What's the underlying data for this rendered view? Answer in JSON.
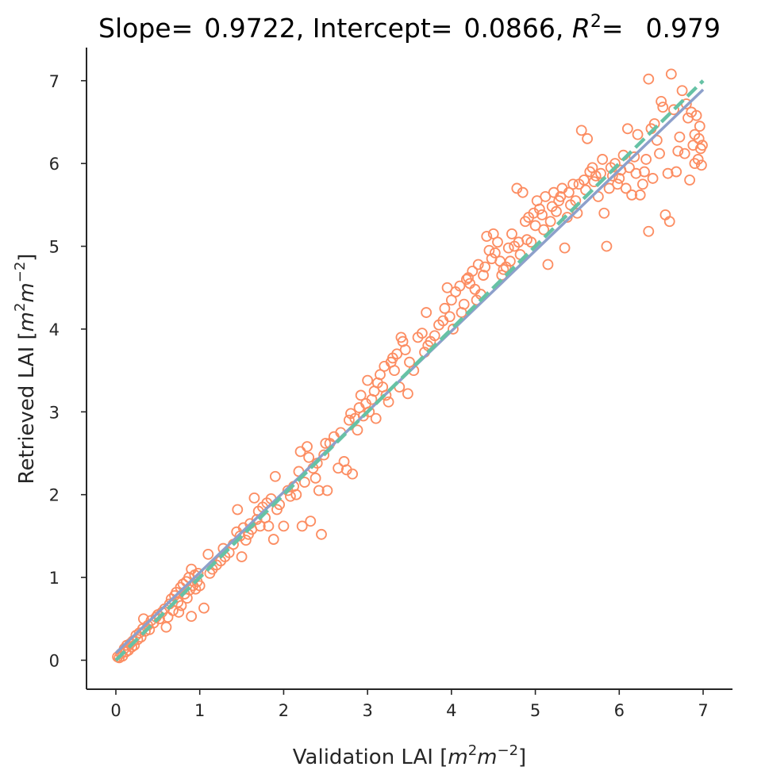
{
  "chart_data": {
    "type": "scatter",
    "title": {
      "slope_label": "Slope=",
      "slope_value": "0.9722",
      "intercept_label": "Intercept=",
      "intercept_value": "0.0866",
      "r2_label": "R",
      "r2_exp": "2",
      "r2_eq": "=",
      "r2_value": "0.979"
    },
    "xlabel": {
      "text": "Validation LAI [",
      "m1": "m",
      "sup1": "2",
      "m2": "m",
      "sup2": "−2",
      "close": "]"
    },
    "ylabel": {
      "text": "Retrieved LAI [",
      "m1": "m",
      "sup1": "2",
      "m2": "m",
      "sup2": "−2",
      "close": "]"
    },
    "xlim": [
      -0.35,
      7.35
    ],
    "ylim": [
      -0.35,
      7.4
    ],
    "xticks": [
      0,
      1,
      2,
      3,
      4,
      5,
      6,
      7
    ],
    "yticks": [
      0,
      1,
      2,
      3,
      4,
      5,
      6,
      7
    ],
    "xtick_labels": [
      "0",
      "1",
      "2",
      "3",
      "4",
      "5",
      "6",
      "7"
    ],
    "ytick_labels": [
      "0",
      "1",
      "2",
      "3",
      "4",
      "5",
      "6",
      "7"
    ],
    "grid": false,
    "legend": "none",
    "colors": {
      "points": "#fc8d62",
      "fit_line": "#8da0cb",
      "identity_line": "#66c2a5",
      "axis": "#262626"
    },
    "fit_line": {
      "slope": 0.9722,
      "intercept": 0.0866,
      "x_range": [
        0,
        7
      ]
    },
    "identity_line": {
      "x_range": [
        0,
        7
      ],
      "style": "dashed"
    },
    "points": [
      [
        0.02,
        0.04
      ],
      [
        0.04,
        0.03
      ],
      [
        0.06,
        0.08
      ],
      [
        0.08,
        0.05
      ],
      [
        0.1,
        0.14
      ],
      [
        0.12,
        0.1
      ],
      [
        0.13,
        0.18
      ],
      [
        0.15,
        0.12
      ],
      [
        0.17,
        0.2
      ],
      [
        0.19,
        0.16
      ],
      [
        0.2,
        0.23
      ],
      [
        0.22,
        0.18
      ],
      [
        0.24,
        0.3
      ],
      [
        0.26,
        0.25
      ],
      [
        0.28,
        0.33
      ],
      [
        0.3,
        0.28
      ],
      [
        0.32,
        0.38
      ],
      [
        0.33,
        0.5
      ],
      [
        0.35,
        0.35
      ],
      [
        0.38,
        0.42
      ],
      [
        0.4,
        0.37
      ],
      [
        0.42,
        0.48
      ],
      [
        0.45,
        0.45
      ],
      [
        0.48,
        0.52
      ],
      [
        0.5,
        0.55
      ],
      [
        0.52,
        0.5
      ],
      [
        0.55,
        0.58
      ],
      [
        0.58,
        0.62
      ],
      [
        0.6,
        0.4
      ],
      [
        0.62,
        0.52
      ],
      [
        0.64,
        0.68
      ],
      [
        0.66,
        0.74
      ],
      [
        0.68,
        0.6
      ],
      [
        0.7,
        0.78
      ],
      [
        0.72,
        0.82
      ],
      [
        0.74,
        0.7
      ],
      [
        0.75,
        0.58
      ],
      [
        0.77,
        0.88
      ],
      [
        0.78,
        0.66
      ],
      [
        0.8,
        0.92
      ],
      [
        0.82,
        0.8
      ],
      [
        0.84,
        0.95
      ],
      [
        0.85,
        0.75
      ],
      [
        0.87,
        1.0
      ],
      [
        0.88,
        0.85
      ],
      [
        0.9,
        1.1
      ],
      [
        0.9,
        0.53
      ],
      [
        0.92,
        0.9
      ],
      [
        0.94,
        1.03
      ],
      [
        0.95,
        0.86
      ],
      [
        0.97,
        0.95
      ],
      [
        0.98,
        1.05
      ],
      [
        1.0,
        0.9
      ],
      [
        1.05,
        0.63
      ],
      [
        1.1,
        1.28
      ],
      [
        1.12,
        1.05
      ],
      [
        1.15,
        1.1
      ],
      [
        1.2,
        1.15
      ],
      [
        1.25,
        1.2
      ],
      [
        1.28,
        1.35
      ],
      [
        1.3,
        1.25
      ],
      [
        1.35,
        1.3
      ],
      [
        1.4,
        1.4
      ],
      [
        1.44,
        1.55
      ],
      [
        1.45,
        1.82
      ],
      [
        1.48,
        1.5
      ],
      [
        1.5,
        1.25
      ],
      [
        1.52,
        1.6
      ],
      [
        1.55,
        1.45
      ],
      [
        1.58,
        1.52
      ],
      [
        1.6,
        1.65
      ],
      [
        1.62,
        1.58
      ],
      [
        1.65,
        1.96
      ],
      [
        1.68,
        1.7
      ],
      [
        1.7,
        1.8
      ],
      [
        1.72,
        1.62
      ],
      [
        1.75,
        1.85
      ],
      [
        1.78,
        1.72
      ],
      [
        1.8,
        1.9
      ],
      [
        1.82,
        1.62
      ],
      [
        1.85,
        1.95
      ],
      [
        1.88,
        1.46
      ],
      [
        1.9,
        2.22
      ],
      [
        1.92,
        1.82
      ],
      [
        1.95,
        1.88
      ],
      [
        2.0,
        1.62
      ],
      [
        2.05,
        2.05
      ],
      [
        2.08,
        1.98
      ],
      [
        2.12,
        2.1
      ],
      [
        2.15,
        2.0
      ],
      [
        2.18,
        2.28
      ],
      [
        2.2,
        2.52
      ],
      [
        2.22,
        1.62
      ],
      [
        2.25,
        2.15
      ],
      [
        2.28,
        2.58
      ],
      [
        2.3,
        2.45
      ],
      [
        2.32,
        1.68
      ],
      [
        2.35,
        2.32
      ],
      [
        2.38,
        2.2
      ],
      [
        2.4,
        2.38
      ],
      [
        2.42,
        2.05
      ],
      [
        2.45,
        1.52
      ],
      [
        2.48,
        2.48
      ],
      [
        2.5,
        2.62
      ],
      [
        2.52,
        2.05
      ],
      [
        2.55,
        2.62
      ],
      [
        2.6,
        2.7
      ],
      [
        2.65,
        2.32
      ],
      [
        2.68,
        2.75
      ],
      [
        2.72,
        2.4
      ],
      [
        2.75,
        2.3
      ],
      [
        2.78,
        2.9
      ],
      [
        2.8,
        2.98
      ],
      [
        2.82,
        2.25
      ],
      [
        2.85,
        2.92
      ],
      [
        2.88,
        2.78
      ],
      [
        2.9,
        3.05
      ],
      [
        2.92,
        3.2
      ],
      [
        2.95,
        2.95
      ],
      [
        2.98,
        3.1
      ],
      [
        3.0,
        3.38
      ],
      [
        3.02,
        3.0
      ],
      [
        3.05,
        3.15
      ],
      [
        3.08,
        3.25
      ],
      [
        3.1,
        2.92
      ],
      [
        3.12,
        3.35
      ],
      [
        3.15,
        3.45
      ],
      [
        3.18,
        3.3
      ],
      [
        3.2,
        3.55
      ],
      [
        3.22,
        3.2
      ],
      [
        3.25,
        3.12
      ],
      [
        3.28,
        3.6
      ],
      [
        3.3,
        3.65
      ],
      [
        3.32,
        3.5
      ],
      [
        3.35,
        3.7
      ],
      [
        3.38,
        3.3
      ],
      [
        3.4,
        3.9
      ],
      [
        3.42,
        3.85
      ],
      [
        3.45,
        3.75
      ],
      [
        3.48,
        3.22
      ],
      [
        3.5,
        3.6
      ],
      [
        3.55,
        3.5
      ],
      [
        3.6,
        3.9
      ],
      [
        3.65,
        3.95
      ],
      [
        3.68,
        3.72
      ],
      [
        3.7,
        4.2
      ],
      [
        3.72,
        3.8
      ],
      [
        3.75,
        3.85
      ],
      [
        3.8,
        3.92
      ],
      [
        3.85,
        4.05
      ],
      [
        3.9,
        4.1
      ],
      [
        3.92,
        4.25
      ],
      [
        3.95,
        4.5
      ],
      [
        3.98,
        4.15
      ],
      [
        4.0,
        4.35
      ],
      [
        4.02,
        4.0
      ],
      [
        4.05,
        4.45
      ],
      [
        4.1,
        4.52
      ],
      [
        4.12,
        4.2
      ],
      [
        4.15,
        4.3
      ],
      [
        4.18,
        4.6
      ],
      [
        4.2,
        4.62
      ],
      [
        4.22,
        4.55
      ],
      [
        4.25,
        4.7
      ],
      [
        4.28,
        4.48
      ],
      [
        4.3,
        4.35
      ],
      [
        4.32,
        4.78
      ],
      [
        4.35,
        4.42
      ],
      [
        4.38,
        4.65
      ],
      [
        4.4,
        4.75
      ],
      [
        4.42,
        5.12
      ],
      [
        4.45,
        4.95
      ],
      [
        4.48,
        4.85
      ],
      [
        4.5,
        5.15
      ],
      [
        4.52,
        4.92
      ],
      [
        4.55,
        5.05
      ],
      [
        4.58,
        4.82
      ],
      [
        4.6,
        4.65
      ],
      [
        4.62,
        4.72
      ],
      [
        4.65,
        4.75
      ],
      [
        4.68,
        4.98
      ],
      [
        4.7,
        4.82
      ],
      [
        4.72,
        5.15
      ],
      [
        4.75,
        5.0
      ],
      [
        4.78,
        5.7
      ],
      [
        4.8,
        5.05
      ],
      [
        4.82,
        4.9
      ],
      [
        4.85,
        5.65
      ],
      [
        4.88,
        5.3
      ],
      [
        4.9,
        5.08
      ],
      [
        4.92,
        5.35
      ],
      [
        4.95,
        5.05
      ],
      [
        4.98,
        5.4
      ],
      [
        5.0,
        5.25
      ],
      [
        5.02,
        5.55
      ],
      [
        5.05,
        5.45
      ],
      [
        5.08,
        5.38
      ],
      [
        5.1,
        5.2
      ],
      [
        5.12,
        5.6
      ],
      [
        5.15,
        4.78
      ],
      [
        5.18,
        5.3
      ],
      [
        5.2,
        5.48
      ],
      [
        5.22,
        5.65
      ],
      [
        5.25,
        5.42
      ],
      [
        5.28,
        5.55
      ],
      [
        5.3,
        5.6
      ],
      [
        5.32,
        5.7
      ],
      [
        5.35,
        4.98
      ],
      [
        5.38,
        5.35
      ],
      [
        5.4,
        5.65
      ],
      [
        5.42,
        5.5
      ],
      [
        5.45,
        5.75
      ],
      [
        5.48,
        5.55
      ],
      [
        5.5,
        5.4
      ],
      [
        5.52,
        5.75
      ],
      [
        5.55,
        6.4
      ],
      [
        5.58,
        5.8
      ],
      [
        5.6,
        5.68
      ],
      [
        5.62,
        6.3
      ],
      [
        5.65,
        5.9
      ],
      [
        5.68,
        5.95
      ],
      [
        5.7,
        5.78
      ],
      [
        5.72,
        5.85
      ],
      [
        5.75,
        5.6
      ],
      [
        5.78,
        5.88
      ],
      [
        5.8,
        6.05
      ],
      [
        5.82,
        5.4
      ],
      [
        5.85,
        5.0
      ],
      [
        5.88,
        5.7
      ],
      [
        5.9,
        5.95
      ],
      [
        5.92,
        5.85
      ],
      [
        5.95,
        6.0
      ],
      [
        5.98,
        5.75
      ],
      [
        6.0,
        5.82
      ],
      [
        6.02,
        5.92
      ],
      [
        6.05,
        6.1
      ],
      [
        6.08,
        5.7
      ],
      [
        6.1,
        6.42
      ],
      [
        6.12,
        5.95
      ],
      [
        6.15,
        5.62
      ],
      [
        6.18,
        6.08
      ],
      [
        6.2,
        5.88
      ],
      [
        6.22,
        6.35
      ],
      [
        6.25,
        5.62
      ],
      [
        6.28,
        5.75
      ],
      [
        6.3,
        5.9
      ],
      [
        6.32,
        6.05
      ],
      [
        6.35,
        7.02
      ],
      [
        6.35,
        5.18
      ],
      [
        6.38,
        6.42
      ],
      [
        6.4,
        5.82
      ],
      [
        6.42,
        6.48
      ],
      [
        6.45,
        6.28
      ],
      [
        6.48,
        6.12
      ],
      [
        6.5,
        6.75
      ],
      [
        6.52,
        6.68
      ],
      [
        6.55,
        5.38
      ],
      [
        6.58,
        5.88
      ],
      [
        6.6,
        5.3
      ],
      [
        6.62,
        7.08
      ],
      [
        6.65,
        6.65
      ],
      [
        6.68,
        5.9
      ],
      [
        6.7,
        6.15
      ],
      [
        6.72,
        6.32
      ],
      [
        6.75,
        6.88
      ],
      [
        6.78,
        6.12
      ],
      [
        6.8,
        6.72
      ],
      [
        6.82,
        6.55
      ],
      [
        6.84,
        5.8
      ],
      [
        6.86,
        6.62
      ],
      [
        6.88,
        6.22
      ],
      [
        6.9,
        6.35
      ],
      [
        6.92,
        6.58
      ],
      [
        6.94,
        6.05
      ],
      [
        6.95,
        6.3
      ],
      [
        6.96,
        6.45
      ],
      [
        6.97,
        6.18
      ],
      [
        6.98,
        5.98
      ],
      [
        6.99,
        6.22
      ],
      [
        6.9,
        6.0
      ]
    ]
  }
}
